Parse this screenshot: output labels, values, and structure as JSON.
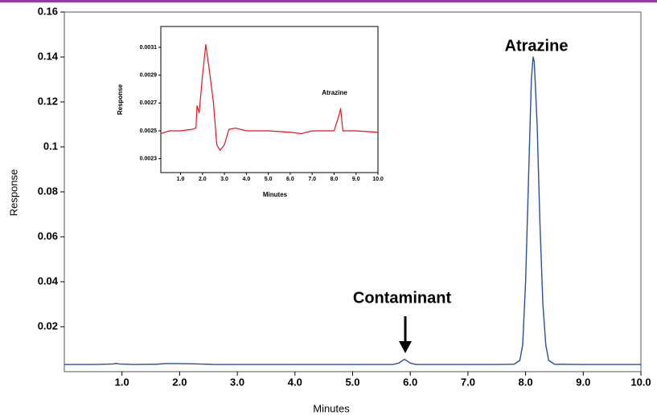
{
  "chart_data": [
    {
      "type": "line",
      "x_label": "Minutes",
      "y_label": "Response",
      "annotations": [
        "Atrazine",
        "Contaminant"
      ],
      "x": [
        0,
        0.5,
        0.85,
        0.9,
        0.95,
        1.2,
        1.6,
        1.75,
        1.9,
        2.2,
        2.5,
        2.6,
        3,
        4,
        5,
        5.7,
        5.8,
        5.9,
        6.0,
        6.1,
        6.5,
        7,
        7.5,
        7.8,
        7.9,
        7.95,
        8.0,
        8.05,
        8.1,
        8.13,
        8.15,
        8.2,
        8.25,
        8.3,
        8.35,
        8.4,
        8.5,
        9,
        10
      ],
      "series": [
        {
          "color": "#2a4f9c",
          "values": [
            0.0032,
            0.0032,
            0.0034,
            0.0037,
            0.0034,
            0.0032,
            0.0033,
            0.0036,
            0.0036,
            0.0035,
            0.0033,
            0.0032,
            0.0032,
            0.0032,
            0.0032,
            0.0032,
            0.0038,
            0.0055,
            0.0038,
            0.0032,
            0.0032,
            0.0032,
            0.0032,
            0.0033,
            0.005,
            0.012,
            0.04,
            0.085,
            0.13,
            0.14,
            0.138,
            0.11,
            0.065,
            0.03,
            0.012,
            0.005,
            0.0033,
            0.0032,
            0.0032
          ]
        }
      ],
      "xlim": [
        0,
        10
      ],
      "ylim": [
        0,
        0.16
      ],
      "xticks": [
        {
          "value": 1,
          "label": "1.0"
        },
        {
          "value": 2,
          "label": "2.0"
        },
        {
          "value": 3,
          "label": "3.0"
        },
        {
          "value": 4,
          "label": "4.0"
        },
        {
          "value": 5,
          "label": "5.0"
        },
        {
          "value": 6,
          "label": "6.0"
        },
        {
          "value": 7,
          "label": "7.0"
        },
        {
          "value": 8,
          "label": "8.0"
        },
        {
          "value": 9,
          "label": "9.0"
        },
        {
          "value": 10,
          "label": "10.0"
        }
      ],
      "yticks": [
        0.02,
        0.04,
        0.06,
        0.08,
        0.1,
        0.12,
        0.14,
        0.16
      ]
    },
    {
      "type": "line",
      "x_label": "Minutes",
      "y_label": "Response",
      "annotations": [
        "Atrazine"
      ],
      "x": [
        0.1,
        0.5,
        1.0,
        1.5,
        1.7,
        1.75,
        1.85,
        2.0,
        2.15,
        2.3,
        2.5,
        2.65,
        2.8,
        3.0,
        3.2,
        3.5,
        4,
        5,
        6,
        6.5,
        7,
        7.5,
        8.0,
        8.2,
        8.3,
        8.4,
        9,
        10
      ],
      "series": [
        {
          "color": "#e0141e",
          "values": [
            0.00248,
            0.0025,
            0.0025,
            0.00251,
            0.00252,
            0.00268,
            0.00263,
            0.0029,
            0.00312,
            0.00295,
            0.0027,
            0.0024,
            0.00236,
            0.0024,
            0.00251,
            0.00252,
            0.0025,
            0.0025,
            0.00249,
            0.00248,
            0.0025,
            0.0025,
            0.0025,
            0.0026,
            0.00266,
            0.0025,
            0.0025,
            0.00249
          ]
        }
      ],
      "xlim": [
        0.1,
        10.0
      ],
      "ylim": [
        0.0022,
        0.00325
      ],
      "xticks": [
        {
          "value": 1,
          "label": "1.0"
        },
        {
          "value": 2,
          "label": "2.0"
        },
        {
          "value": 3,
          "label": "3.0"
        },
        {
          "value": 4,
          "label": "4.0"
        },
        {
          "value": 5,
          "label": "5.0"
        },
        {
          "value": 6,
          "label": "6.0"
        },
        {
          "value": 7,
          "label": "7.0"
        },
        {
          "value": 8,
          "label": "8.0"
        },
        {
          "value": 9,
          "label": "9.0"
        },
        {
          "value": 10,
          "label": "10.0"
        }
      ],
      "yticks": [
        0.0023,
        0.0025,
        0.0027,
        0.0029,
        0.0031
      ]
    }
  ]
}
